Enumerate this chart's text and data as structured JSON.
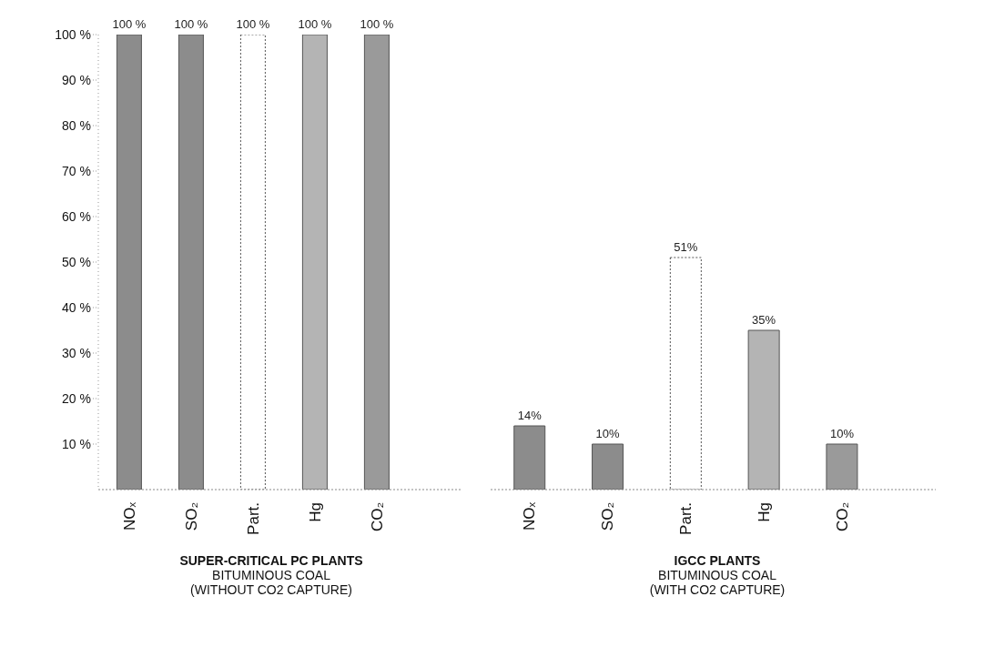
{
  "chart_data": [
    {
      "type": "bar",
      "categories": [
        "NOₓ",
        "SO₂",
        "Part.",
        "Hg",
        "CO₂"
      ],
      "values": [
        100,
        100,
        100,
        100,
        100
      ],
      "value_labels": [
        "100 %",
        "100 %",
        "100 %",
        "100 %",
        "100 %"
      ],
      "colors": [
        "#8c8c8c",
        "#8c8c8c",
        "#ffffff",
        "#b4b4b4",
        "#9a9a9a"
      ],
      "xlabel": "SUPER-CRITICAL PC PLANTS\nBITUMINOUS COAL\n(WITHOUT CO2 CAPTURE)",
      "ylim": [
        0,
        100
      ],
      "yticks": [
        {
          "value": 10,
          "label": "10 %"
        },
        {
          "value": 20,
          "label": "20 %"
        },
        {
          "value": 30,
          "label": "30 %"
        },
        {
          "value": 40,
          "label": "40 %"
        },
        {
          "value": 50,
          "label": "50 %"
        },
        {
          "value": 60,
          "label": "60 %"
        },
        {
          "value": 70,
          "label": "70 %"
        },
        {
          "value": 80,
          "label": "80 %"
        },
        {
          "value": 90,
          "label": "90 %"
        },
        {
          "value": 100,
          "label": "100 %"
        }
      ],
      "grid": false
    },
    {
      "type": "bar",
      "categories": [
        "NOₓ",
        "SO₂",
        "Part.",
        "Hg",
        "CO₂"
      ],
      "values": [
        14,
        10,
        51,
        35,
        10
      ],
      "value_labels": [
        "14%",
        "10%",
        "51%",
        "35%",
        "10%"
      ],
      "colors": [
        "#8c8c8c",
        "#8c8c8c",
        "#ffffff",
        "#b4b4b4",
        "#9a9a9a"
      ],
      "xlabel": "IGCC PLANTS\nBITUMINOUS COAL\n(WITH CO2 CAPTURE)",
      "ylim": [
        0,
        100
      ],
      "tick_labels": "x",
      "grid": false
    }
  ]
}
